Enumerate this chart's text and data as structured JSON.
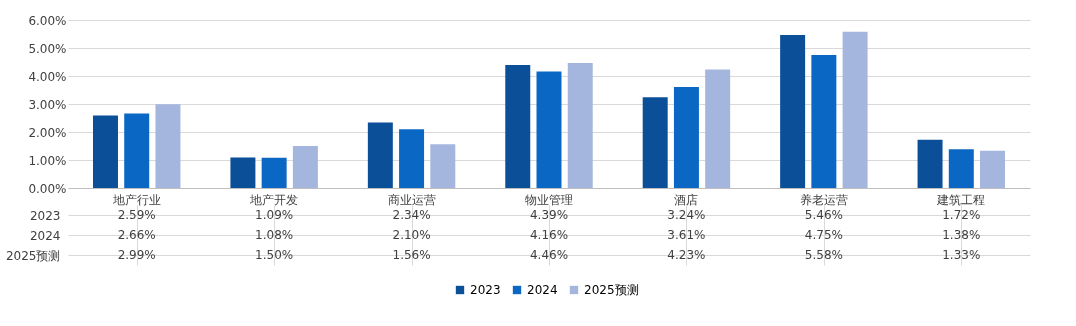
{
  "chart_data": {
    "type": "bar",
    "categories": [
      "地产行业",
      "地产开发",
      "商业运营",
      "物业管理",
      "酒店",
      "养老运营",
      "建筑工程"
    ],
    "series": [
      {
        "name": "2023",
        "color": "#0b4f99",
        "values": [
          2.59,
          1.09,
          2.34,
          4.39,
          3.24,
          5.46,
          1.72
        ],
        "value_labels": [
          "2.59%",
          "1.09%",
          "2.34%",
          "4.39%",
          "3.24%",
          "5.46%",
          "1.72%"
        ]
      },
      {
        "name": "2024",
        "color": "#0a67c4",
        "values": [
          2.66,
          1.08,
          2.1,
          4.16,
          3.61,
          4.75,
          1.38
        ],
        "value_labels": [
          "2.66%",
          "1.08%",
          "2.10%",
          "4.16%",
          "3.61%",
          "4.75%",
          "1.38%"
        ]
      },
      {
        "name": "2025预测",
        "color": "#a4b5de",
        "values": [
          2.99,
          1.5,
          1.56,
          4.46,
          4.23,
          5.58,
          1.33
        ],
        "value_labels": [
          "2.99%",
          "1.50%",
          "1.56%",
          "4.46%",
          "4.23%",
          "5.58%",
          "1.33%"
        ]
      }
    ],
    "ylim": [
      0,
      6
    ],
    "yticks": [
      {
        "value": 0,
        "label": "0.00%"
      },
      {
        "value": 1,
        "label": "1.00%"
      },
      {
        "value": 2,
        "label": "2.00%"
      },
      {
        "value": 3,
        "label": "3.00%"
      },
      {
        "value": 4,
        "label": "4.00%"
      },
      {
        "value": 5,
        "label": "5.00%"
      },
      {
        "value": 6,
        "label": "6.00%"
      }
    ],
    "grid": "y",
    "legend": "bottom"
  }
}
